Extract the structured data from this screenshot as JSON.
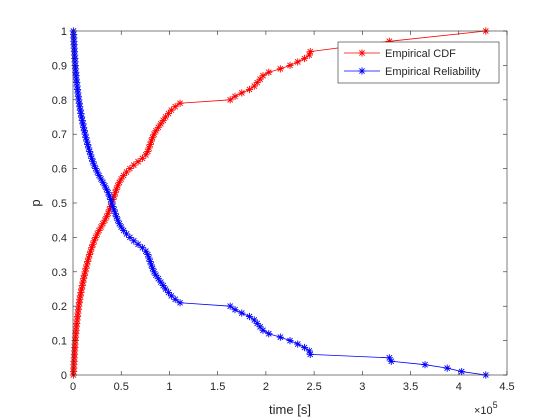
{
  "chart_data": {
    "type": "line",
    "xlabel": "time [s]",
    "ylabel": "p",
    "xlim": [
      0,
      450000
    ],
    "ylim": [
      0,
      1
    ],
    "x_exponent_label": "×10",
    "x_exponent": "5",
    "x_ticks": [
      0,
      50000,
      100000,
      150000,
      200000,
      250000,
      300000,
      350000,
      400000,
      450000
    ],
    "x_tick_labels": [
      "0",
      "0.5",
      "1",
      "1.5",
      "2",
      "2.5",
      "3",
      "3.5",
      "4",
      "4.5"
    ],
    "y_ticks": [
      0,
      0.1,
      0.2,
      0.3,
      0.4,
      0.5,
      0.6,
      0.7,
      0.8,
      0.9,
      1
    ],
    "y_tick_labels": [
      "0",
      "0.1",
      "0.2",
      "0.3",
      "0.4",
      "0.5",
      "0.6",
      "0.7",
      "0.8",
      "0.9",
      "1"
    ],
    "grid": false,
    "legend_position": "top-right",
    "series": [
      {
        "name": "Empirical CDF",
        "color": "#ff0000",
        "marker": "asterisk",
        "points": [
          [
            400,
            0.0
          ],
          [
            600,
            0.01
          ],
          [
            800,
            0.02
          ],
          [
            900,
            0.03
          ],
          [
            1100,
            0.04
          ],
          [
            1300,
            0.05
          ],
          [
            1500,
            0.06
          ],
          [
            1700,
            0.07
          ],
          [
            1900,
            0.08
          ],
          [
            2100,
            0.09
          ],
          [
            2300,
            0.1
          ],
          [
            2600,
            0.11
          ],
          [
            2900,
            0.12
          ],
          [
            3200,
            0.13
          ],
          [
            3500,
            0.14
          ],
          [
            3900,
            0.15
          ],
          [
            4300,
            0.16
          ],
          [
            4700,
            0.17
          ],
          [
            5100,
            0.18
          ],
          [
            5500,
            0.19
          ],
          [
            6000,
            0.2
          ],
          [
            6500,
            0.21
          ],
          [
            7000,
            0.22
          ],
          [
            7600,
            0.23
          ],
          [
            8200,
            0.24
          ],
          [
            8900,
            0.25
          ],
          [
            9600,
            0.26
          ],
          [
            10300,
            0.27
          ],
          [
            11000,
            0.28
          ],
          [
            11800,
            0.29
          ],
          [
            12600,
            0.3
          ],
          [
            13400,
            0.31
          ],
          [
            14300,
            0.32
          ],
          [
            15200,
            0.33
          ],
          [
            16200,
            0.34
          ],
          [
            17200,
            0.35
          ],
          [
            18300,
            0.36
          ],
          [
            19400,
            0.37
          ],
          [
            20600,
            0.38
          ],
          [
            22000,
            0.39
          ],
          [
            23500,
            0.4
          ],
          [
            25200,
            0.41
          ],
          [
            27000,
            0.42
          ],
          [
            29000,
            0.43
          ],
          [
            31000,
            0.44
          ],
          [
            33000,
            0.45
          ],
          [
            34800,
            0.46
          ],
          [
            36400,
            0.47
          ],
          [
            37800,
            0.48
          ],
          [
            39000,
            0.49
          ],
          [
            40200,
            0.5
          ],
          [
            41400,
            0.51
          ],
          [
            42600,
            0.52
          ],
          [
            43800,
            0.53
          ],
          [
            45000,
            0.54
          ],
          [
            46400,
            0.55
          ],
          [
            48000,
            0.56
          ],
          [
            50000,
            0.57
          ],
          [
            52500,
            0.58
          ],
          [
            55500,
            0.59
          ],
          [
            59000,
            0.6
          ],
          [
            63000,
            0.61
          ],
          [
            67500,
            0.62
          ],
          [
            72000,
            0.63
          ],
          [
            75500,
            0.64
          ],
          [
            77500,
            0.65
          ],
          [
            78800,
            0.66
          ],
          [
            80000,
            0.67
          ],
          [
            81200,
            0.68
          ],
          [
            82500,
            0.69
          ],
          [
            84000,
            0.7
          ],
          [
            86000,
            0.71
          ],
          [
            88500,
            0.72
          ],
          [
            91000,
            0.73
          ],
          [
            93500,
            0.74
          ],
          [
            96000,
            0.75
          ],
          [
            99000,
            0.76
          ],
          [
            102000,
            0.77
          ],
          [
            106000,
            0.78
          ],
          [
            111000,
            0.79
          ],
          [
            163000,
            0.8
          ],
          [
            168000,
            0.81
          ],
          [
            175000,
            0.82
          ],
          [
            183000,
            0.83
          ],
          [
            188000,
            0.84
          ],
          [
            191000,
            0.85
          ],
          [
            194000,
            0.86
          ],
          [
            197000,
            0.87
          ],
          [
            203000,
            0.88
          ],
          [
            215000,
            0.89
          ],
          [
            225000,
            0.9
          ],
          [
            233000,
            0.91
          ],
          [
            240000,
            0.92
          ],
          [
            245000,
            0.93
          ],
          [
            246000,
            0.94
          ],
          [
            328000,
            0.97
          ],
          [
            428000,
            1.0
          ]
        ]
      },
      {
        "name": "Empirical Reliability",
        "color": "#0000ff",
        "marker": "asterisk",
        "points": [
          [
            400,
            1.0
          ],
          [
            600,
            0.99
          ],
          [
            800,
            0.98
          ],
          [
            900,
            0.97
          ],
          [
            1100,
            0.96
          ],
          [
            1300,
            0.95
          ],
          [
            1500,
            0.94
          ],
          [
            1700,
            0.93
          ],
          [
            1900,
            0.92
          ],
          [
            2100,
            0.91
          ],
          [
            2300,
            0.9
          ],
          [
            2600,
            0.89
          ],
          [
            2900,
            0.88
          ],
          [
            3200,
            0.87
          ],
          [
            3500,
            0.86
          ],
          [
            3900,
            0.85
          ],
          [
            4300,
            0.84
          ],
          [
            4700,
            0.83
          ],
          [
            5100,
            0.82
          ],
          [
            5500,
            0.81
          ],
          [
            6000,
            0.8
          ],
          [
            6500,
            0.79
          ],
          [
            7000,
            0.78
          ],
          [
            7600,
            0.77
          ],
          [
            8200,
            0.76
          ],
          [
            8900,
            0.75
          ],
          [
            9600,
            0.74
          ],
          [
            10300,
            0.73
          ],
          [
            11000,
            0.72
          ],
          [
            11800,
            0.71
          ],
          [
            12600,
            0.7
          ],
          [
            13400,
            0.69
          ],
          [
            14300,
            0.68
          ],
          [
            15200,
            0.67
          ],
          [
            16200,
            0.66
          ],
          [
            17200,
            0.65
          ],
          [
            18300,
            0.64
          ],
          [
            19400,
            0.63
          ],
          [
            20600,
            0.62
          ],
          [
            22000,
            0.61
          ],
          [
            23500,
            0.6
          ],
          [
            25200,
            0.59
          ],
          [
            27000,
            0.58
          ],
          [
            29000,
            0.57
          ],
          [
            31000,
            0.56
          ],
          [
            33000,
            0.55
          ],
          [
            34800,
            0.54
          ],
          [
            36400,
            0.53
          ],
          [
            37800,
            0.52
          ],
          [
            39000,
            0.51
          ],
          [
            40200,
            0.5
          ],
          [
            41400,
            0.49
          ],
          [
            42600,
            0.48
          ],
          [
            43800,
            0.47
          ],
          [
            45000,
            0.46
          ],
          [
            46400,
            0.45
          ],
          [
            48000,
            0.44
          ],
          [
            50000,
            0.43
          ],
          [
            52500,
            0.42
          ],
          [
            55500,
            0.41
          ],
          [
            59000,
            0.4
          ],
          [
            63000,
            0.39
          ],
          [
            67500,
            0.38
          ],
          [
            72000,
            0.37
          ],
          [
            75500,
            0.36
          ],
          [
            77500,
            0.35
          ],
          [
            78800,
            0.34
          ],
          [
            80000,
            0.33
          ],
          [
            81200,
            0.32
          ],
          [
            82500,
            0.31
          ],
          [
            84000,
            0.3
          ],
          [
            86000,
            0.29
          ],
          [
            88500,
            0.28
          ],
          [
            91000,
            0.27
          ],
          [
            93500,
            0.26
          ],
          [
            96000,
            0.25
          ],
          [
            99000,
            0.24
          ],
          [
            102000,
            0.23
          ],
          [
            106000,
            0.22
          ],
          [
            111000,
            0.21
          ],
          [
            163000,
            0.2
          ],
          [
            168000,
            0.19
          ],
          [
            175000,
            0.18
          ],
          [
            183000,
            0.17
          ],
          [
            188000,
            0.16
          ],
          [
            191000,
            0.15
          ],
          [
            194000,
            0.14
          ],
          [
            197000,
            0.13
          ],
          [
            203000,
            0.12
          ],
          [
            215000,
            0.11
          ],
          [
            225000,
            0.1
          ],
          [
            233000,
            0.09
          ],
          [
            240000,
            0.08
          ],
          [
            245000,
            0.07
          ],
          [
            246000,
            0.06
          ],
          [
            328000,
            0.05
          ],
          [
            330000,
            0.04
          ],
          [
            365000,
            0.03
          ],
          [
            388000,
            0.02
          ],
          [
            403000,
            0.01
          ],
          [
            428000,
            0.0
          ]
        ]
      }
    ]
  }
}
